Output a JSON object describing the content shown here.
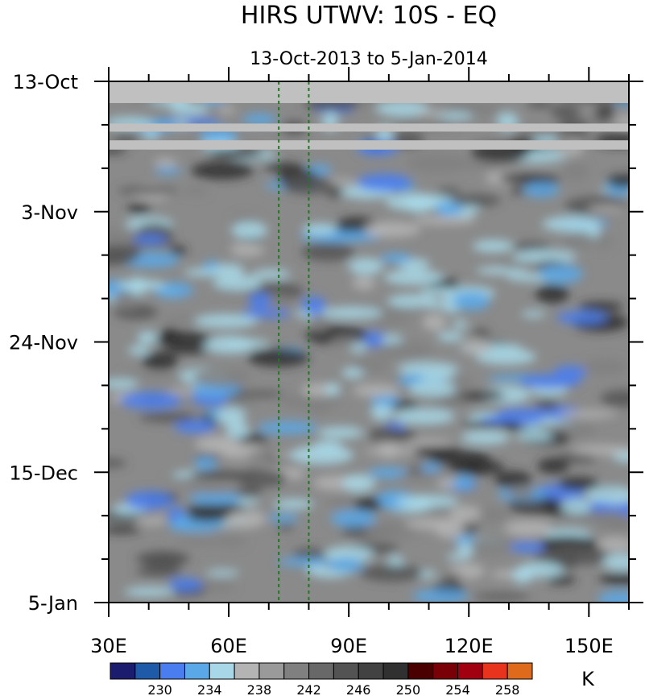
{
  "chart_data": {
    "type": "heatmap",
    "title": "HIRS UTWV: 10S - EQ",
    "subtitle": "13-Oct-2013 to 5-Jan-2014",
    "x_ticks": [
      "30E",
      "60E",
      "90E",
      "120E",
      "150E"
    ],
    "x_tick_values": [
      30,
      60,
      90,
      120,
      150
    ],
    "xlim": [
      30,
      160
    ],
    "y_ticks": [
      "13-Oct",
      "3-Nov",
      "24-Nov",
      "15-Dec",
      "5-Jan"
    ],
    "y_tick_days": [
      0,
      21,
      42,
      63,
      84
    ],
    "ylim_days": [
      0,
      84
    ],
    "reference_lines_lon": [
      72.5,
      80
    ],
    "colorbar": {
      "unit": "K",
      "labels": [
        "230",
        "234",
        "238",
        "242",
        "246",
        "250",
        "254",
        "258"
      ],
      "levels": [
        228,
        230,
        232,
        234,
        236,
        238,
        240,
        242,
        244,
        246,
        248,
        250,
        252,
        254,
        256,
        258,
        260
      ],
      "colors": [
        "#1c1c6e",
        "#1f5aa8",
        "#4a7ef0",
        "#5aa8e8",
        "#a8d8e8",
        "#b4b4b4",
        "#9a9a9a",
        "#808080",
        "#686868",
        "#535353",
        "#424242",
        "#303030",
        "#4a0000",
        "#7a0008",
        "#a00010",
        "#e8341c",
        "#e06a1c"
      ]
    },
    "missing_color": "#c0c0c0"
  }
}
